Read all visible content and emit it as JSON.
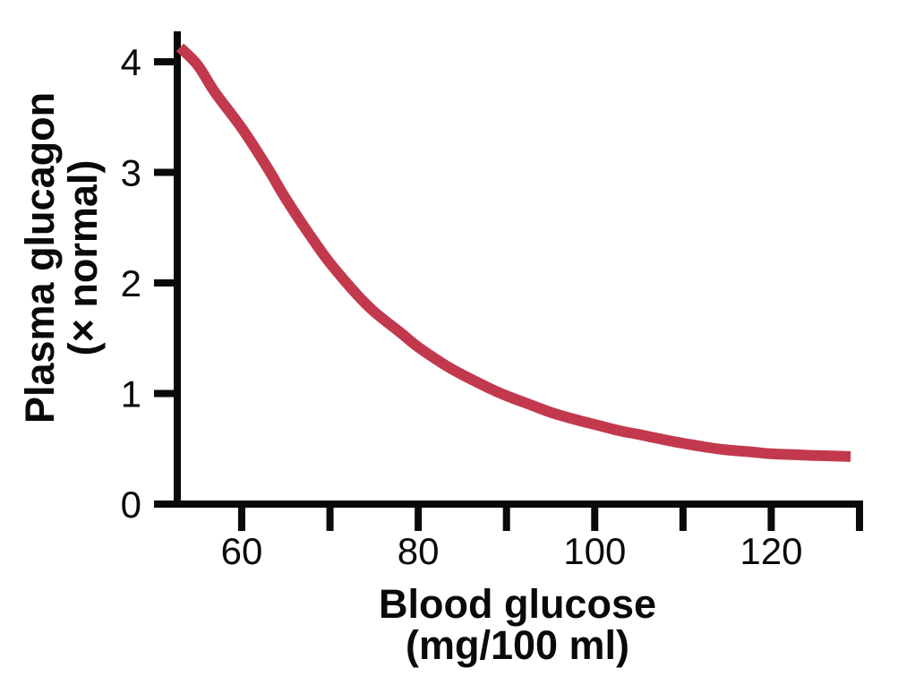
{
  "figure": {
    "background": "#ffffff",
    "axis_color": "#0a0a0a"
  },
  "chart_data": {
    "type": "line",
    "title": "",
    "xlabel": "Blood glucose (mg/100 ml)",
    "xlabel_line1": "Blood glucose",
    "xlabel_line2": "(mg/100 ml)",
    "ylabel": "Plasma glucagon (× normal)",
    "ylabel_line1": "Plasma glucagon",
    "ylabel_line2": "(× normal)",
    "xlim": [
      52.7,
      130.5
    ],
    "ylim": [
      0,
      4.3
    ],
    "x_major_ticks": [
      60,
      80,
      100,
      120
    ],
    "x_major_tick_labels": [
      "60",
      "80",
      "100",
      "120"
    ],
    "x_minor_ticks": [
      70,
      90,
      110,
      130
    ],
    "y_ticks": [
      0,
      1,
      2,
      3,
      4
    ],
    "y_tick_labels": [
      "0",
      "1",
      "2",
      "3",
      "4"
    ],
    "grid": false,
    "legend_position": "none",
    "series": [
      {
        "name": "Plasma glucagon vs blood glucose",
        "color": "#C2394D",
        "stroke_width": 12,
        "points": [
          [
            53,
            4.13
          ],
          [
            55,
            3.97
          ],
          [
            57,
            3.72
          ],
          [
            60,
            3.4
          ],
          [
            63,
            3.03
          ],
          [
            65,
            2.76
          ],
          [
            68,
            2.4
          ],
          [
            70,
            2.18
          ],
          [
            73,
            1.9
          ],
          [
            75,
            1.74
          ],
          [
            78,
            1.55
          ],
          [
            80,
            1.42
          ],
          [
            83,
            1.26
          ],
          [
            85,
            1.17
          ],
          [
            88,
            1.05
          ],
          [
            90,
            0.98
          ],
          [
            93,
            0.89
          ],
          [
            95,
            0.83
          ],
          [
            98,
            0.76
          ],
          [
            100,
            0.72
          ],
          [
            103,
            0.66
          ],
          [
            105,
            0.63
          ],
          [
            108,
            0.58
          ],
          [
            110,
            0.55
          ],
          [
            113,
            0.51
          ],
          [
            115,
            0.49
          ],
          [
            118,
            0.47
          ],
          [
            120,
            0.455
          ],
          [
            123,
            0.445
          ],
          [
            125,
            0.44
          ],
          [
            127,
            0.435
          ],
          [
            129,
            0.43
          ]
        ]
      }
    ]
  }
}
